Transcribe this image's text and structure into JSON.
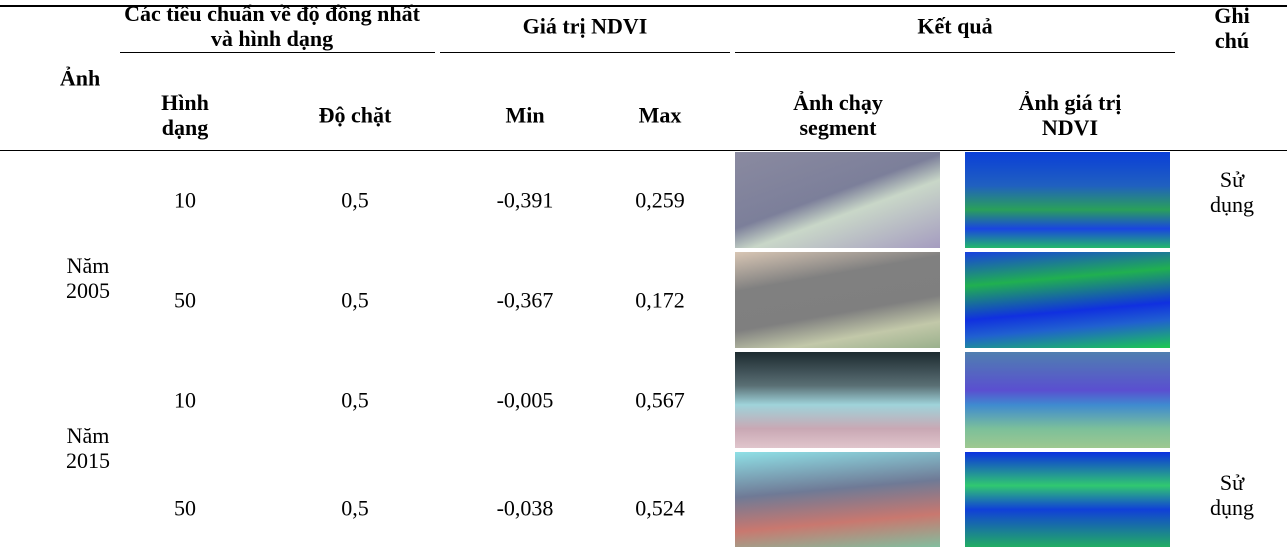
{
  "header": {
    "image": "Ảnh",
    "criteria": "Các tiêu chuẩn về độ đồng nhất và hình dạng",
    "ndvi": "Giá trị NDVI",
    "result": "Kết quả",
    "note": "Ghi chú",
    "shape": "Hình dạng",
    "compactness": "Độ chặt",
    "min": "Min",
    "max": "Max",
    "segment_image": "Ảnh chạy segment",
    "ndvi_image": "Ảnh giá trị NDVI"
  },
  "groups": [
    {
      "year": "Năm 2005",
      "rows": [
        {
          "shape": "10",
          "compactness": "0,5",
          "min": "-0,391",
          "max": "0,259",
          "note": "Sử dụng"
        },
        {
          "shape": "50",
          "compactness": "0,5",
          "min": "-0,367",
          "max": "0,172"
        }
      ]
    },
    {
      "year": "Năm 2015",
      "rows": [
        {
          "shape": "10",
          "compactness": "0,5",
          "min": "-0,005",
          "max": "0,567"
        },
        {
          "shape": "50",
          "compactness": "0,5",
          "min": "-0,038",
          "max": "0,524",
          "note": "Sử dụng"
        }
      ]
    }
  ]
}
